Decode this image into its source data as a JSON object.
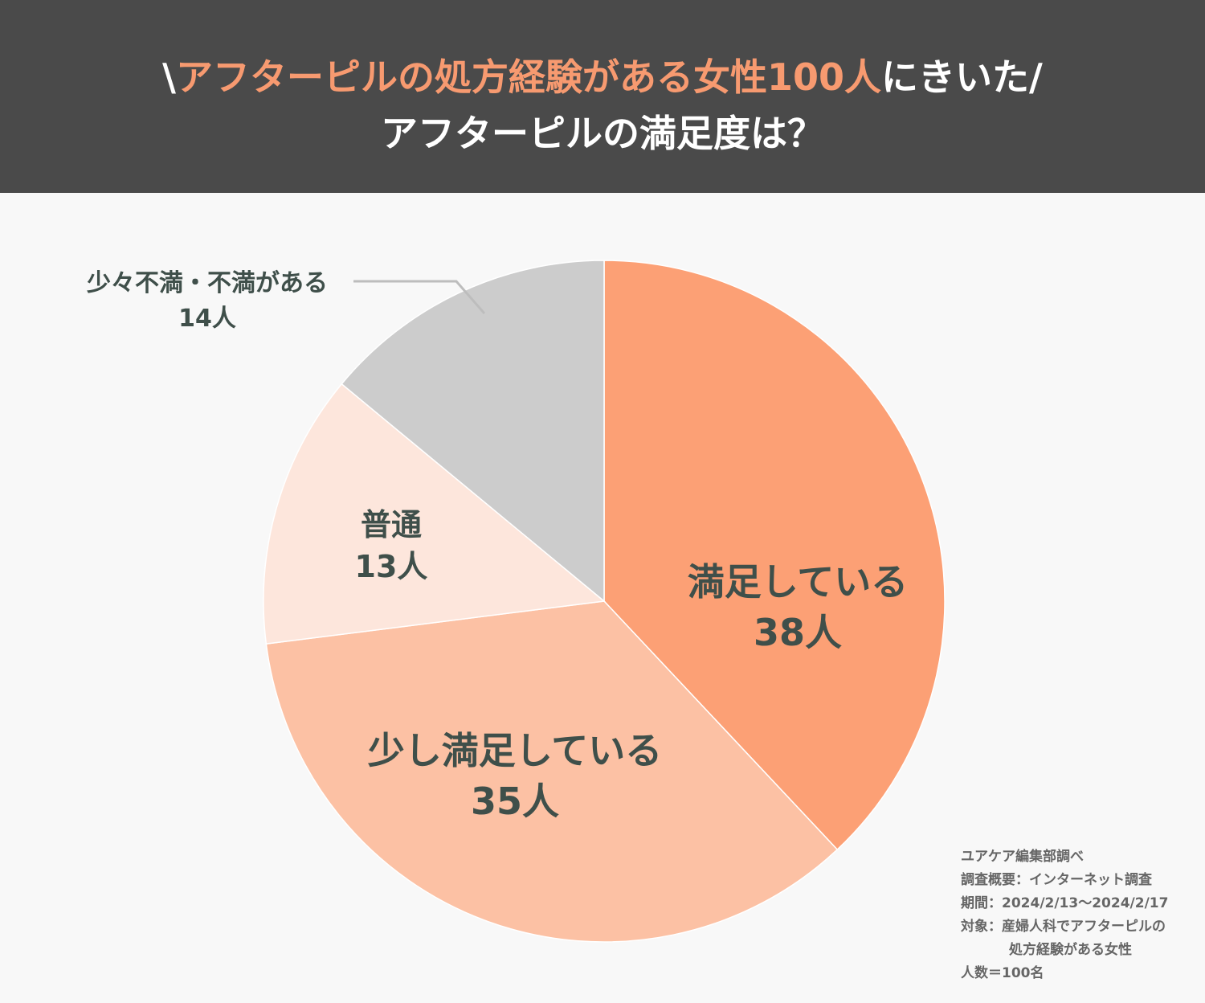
{
  "header": {
    "line1_prefix": "\\",
    "line1_accent": "アフターピルの処方経験がある女性100人",
    "line1_suffix": "にきいた/",
    "line2": "アフターピルの満足度は？"
  },
  "chart_data": {
    "type": "pie",
    "total": 100,
    "unit": "人",
    "slices": [
      {
        "label": "満足している",
        "value": 38,
        "value_label": "38人",
        "color": "#fca075"
      },
      {
        "label": "少し満足している",
        "value": 35,
        "value_label": "35人",
        "color": "#fcc1a4"
      },
      {
        "label": "普通",
        "value": 13,
        "value_label": "13人",
        "color": "#fde6dc"
      },
      {
        "label": "少々不満・不満がある",
        "value": 14,
        "value_label": "14人",
        "color": "#cccccc"
      }
    ],
    "label_color": "#3f4f4a"
  },
  "footnote": {
    "lines": [
      "ユアケア編集部調べ",
      "調査概要：インターネット調査",
      "期間：2024/2/13〜2024/2/17",
      "対象：産婦人科でアフターピルの",
      "処方経験がある女性",
      "人数＝100名"
    ]
  }
}
